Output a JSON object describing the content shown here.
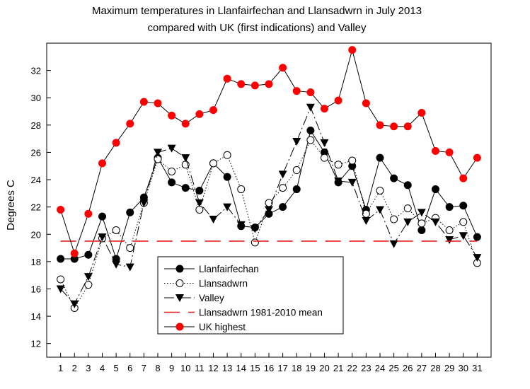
{
  "chart_data": {
    "type": "line",
    "title": "Maximum temperatures in Llanfairfechan and Llansadwrn in July 2013",
    "subtitle": "compared with UK (first indications) and Valley",
    "xlabel": "",
    "ylabel": "Degrees C",
    "x": [
      1,
      2,
      3,
      4,
      5,
      6,
      7,
      8,
      9,
      10,
      11,
      12,
      13,
      14,
      15,
      16,
      17,
      18,
      19,
      20,
      21,
      22,
      23,
      24,
      25,
      26,
      27,
      28,
      29,
      30,
      31
    ],
    "x_ticks": [
      "1",
      "2",
      "3",
      "4",
      "5",
      "6",
      "7",
      "8",
      "9",
      "10",
      "11",
      "12",
      "13",
      "14",
      "15",
      "16",
      "17",
      "18",
      "19",
      "20",
      "21",
      "22",
      "23",
      "24",
      "25",
      "26",
      "27",
      "28",
      "29",
      "30",
      "31"
    ],
    "xlim": [
      0,
      32
    ],
    "ylim": [
      11,
      34
    ],
    "y_ticks": [
      12,
      14,
      16,
      18,
      20,
      22,
      24,
      26,
      28,
      30,
      32
    ],
    "grid": false,
    "legend_position": "bottom-center",
    "series": [
      {
        "name": "Llanfairfechan",
        "style": "solid",
        "marker": "filled-circle",
        "color": "#000000",
        "values": [
          18.2,
          18.2,
          18.5,
          21.3,
          18.2,
          21.6,
          22.7,
          25.6,
          23.8,
          23.4,
          23.2,
          25.2,
          24.2,
          20.6,
          20.5,
          21.5,
          22.0,
          23.3,
          27.6,
          26.0,
          23.8,
          25.0,
          21.8,
          25.6,
          24.1,
          23.6,
          20.3,
          23.3,
          22.0,
          22.1,
          19.8
        ]
      },
      {
        "name": "Llansadwrn",
        "style": "dotted",
        "marker": "open-circle",
        "color": "#000000",
        "values": [
          16.7,
          14.6,
          16.3,
          19.7,
          20.3,
          19.0,
          22.3,
          25.5,
          24.6,
          25.1,
          21.8,
          25.2,
          25.8,
          23.3,
          19.4,
          22.3,
          23.4,
          24.7,
          26.9,
          25.6,
          25.1,
          25.4,
          21.5,
          23.2,
          21.1,
          21.9,
          20.8,
          21.2,
          20.3,
          20.9,
          17.9
        ]
      },
      {
        "name": "Valley",
        "style": "dash-dot",
        "marker": "filled-triangle-down",
        "color": "#000000",
        "values": [
          16.0,
          14.9,
          16.9,
          19.8,
          17.8,
          17.6,
          22.3,
          26.0,
          26.3,
          25.6,
          22.3,
          21.1,
          22.0,
          20.7,
          20.4,
          21.8,
          24.4,
          26.8,
          29.3,
          26.7,
          23.9,
          23.8,
          21.0,
          21.8,
          19.3,
          20.9,
          21.6,
          20.9,
          19.6,
          19.9,
          18.3
        ]
      },
      {
        "name": "Llansadwrn 1981-2010 mean",
        "style": "long-dash",
        "marker": "none",
        "color": "#e31a1c",
        "values": [
          19.5,
          19.5,
          19.5,
          19.5,
          19.5,
          19.5,
          19.5,
          19.5,
          19.5,
          19.5,
          19.5,
          19.5,
          19.5,
          19.5,
          19.5,
          19.5,
          19.5,
          19.5,
          19.5,
          19.5,
          19.5,
          19.5,
          19.5,
          19.5,
          19.5,
          19.5,
          19.5,
          19.5,
          19.5,
          19.5,
          19.5
        ]
      },
      {
        "name": "UK highest",
        "style": "solid",
        "marker": "filled-circle",
        "color": "#000000",
        "marker_color": "#ff0000",
        "values": [
          21.8,
          18.6,
          21.5,
          25.2,
          26.7,
          28.1,
          29.7,
          29.6,
          28.7,
          28.1,
          28.8,
          29.1,
          31.4,
          31.0,
          30.9,
          31.0,
          32.2,
          30.5,
          30.4,
          29.2,
          29.8,
          33.5,
          29.6,
          28.0,
          27.9,
          27.9,
          28.9,
          26.1,
          26.0,
          24.1,
          25.6
        ]
      }
    ]
  }
}
